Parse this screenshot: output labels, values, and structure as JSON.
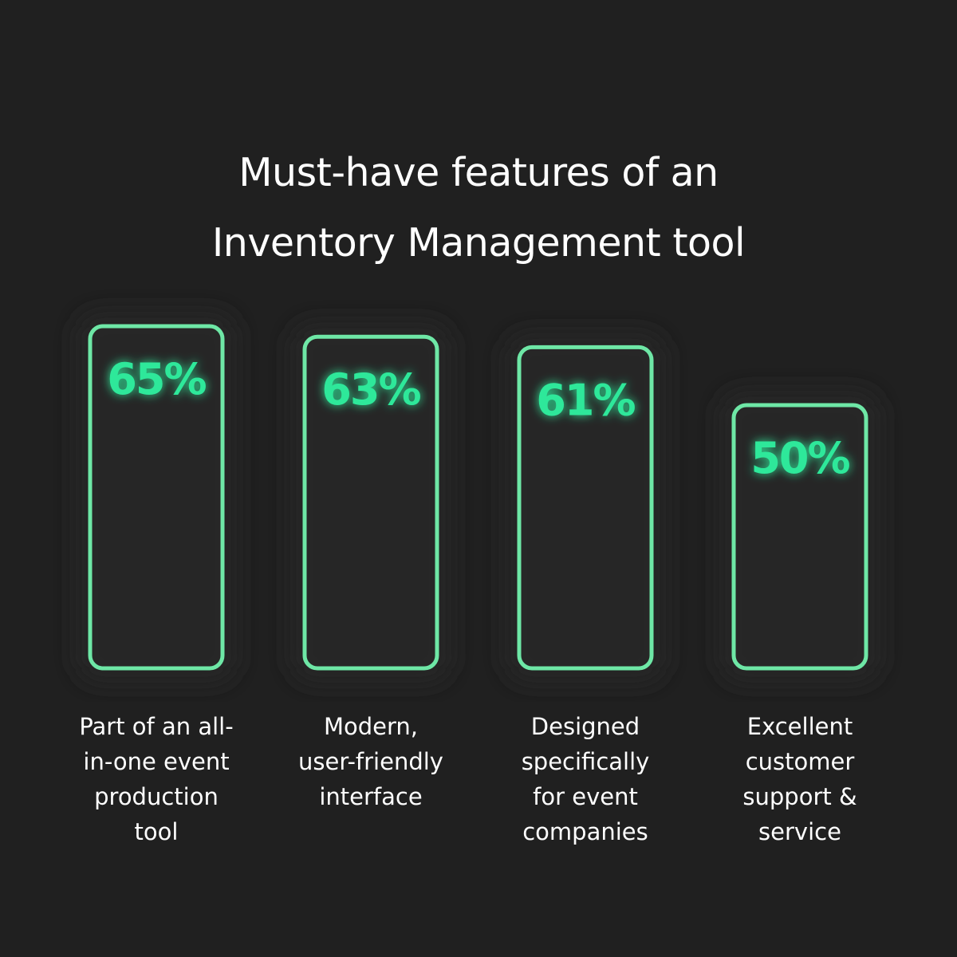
{
  "chart_data": {
    "type": "bar",
    "title_lines": [
      "Must-have features of an",
      "Inventory Management tool"
    ],
    "categories": [
      "Part of an all-in-one event production tool",
      "Modern, user-friendly interface",
      "Designed specifically for event companies",
      "Excellent customer support & service"
    ],
    "category_lines": [
      [
        "Part of an all-",
        "in-one event",
        "production",
        "tool"
      ],
      [
        "Modern,",
        "user-friendly",
        "interface"
      ],
      [
        "Designed",
        "specifically",
        "for event",
        "companies"
      ],
      [
        "Excellent",
        "customer",
        "support &",
        "service"
      ]
    ],
    "values": [
      65,
      63,
      61,
      50
    ],
    "value_labels": [
      "65%",
      "63%",
      "61%",
      "50%"
    ],
    "unit": "%",
    "xlabel": "",
    "ylabel": "",
    "grid": false,
    "legend": "none"
  },
  "colors": {
    "background": "#202020",
    "bar_outline": "#6ee7a6",
    "value_text": "#2ee89a",
    "text": "#ffffff"
  }
}
